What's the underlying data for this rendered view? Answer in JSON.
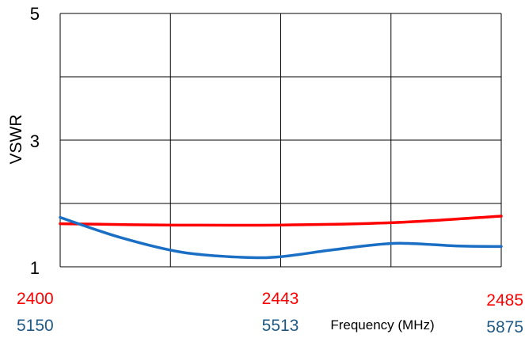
{
  "chart_data": {
    "type": "line",
    "ylabel": "VSWR",
    "xlabel": "Frequency (MHz)",
    "ylim": [
      1,
      5
    ],
    "y_ticks": [
      "5",
      "3",
      "1"
    ],
    "grid": true,
    "x_axes": [
      {
        "ticks": [
          "2400",
          "2443",
          "2485"
        ],
        "range": [
          2400,
          2485
        ],
        "color": "#ff0000"
      },
      {
        "ticks": [
          "5150",
          "5513",
          "5875"
        ],
        "range": [
          5150,
          5875
        ],
        "color": "#1f5a85"
      }
    ],
    "series": [
      {
        "color": "#ff0000",
        "x": [
          2400,
          2420,
          2443,
          2465,
          2485
        ],
        "y": [
          1.68,
          1.66,
          1.66,
          1.7,
          1.8
        ]
      },
      {
        "color": "#1a6fc4",
        "x": [
          5150,
          5250,
          5350,
          5450,
          5513,
          5600,
          5700,
          5800,
          5875
        ],
        "y": [
          1.78,
          1.46,
          1.23,
          1.15,
          1.16,
          1.27,
          1.37,
          1.33,
          1.32
        ]
      }
    ]
  }
}
